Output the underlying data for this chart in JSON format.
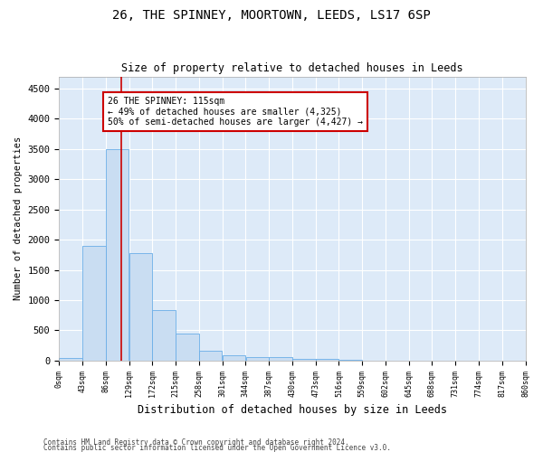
{
  "title1": "26, THE SPINNEY, MOORTOWN, LEEDS, LS17 6SP",
  "title2": "Size of property relative to detached houses in Leeds",
  "xlabel": "Distribution of detached houses by size in Leeds",
  "ylabel": "Number of detached properties",
  "bar_color": "#c9ddf2",
  "bar_edge_color": "#6aaee8",
  "background_color": "#ddeaf8",
  "grid_color": "#ffffff",
  "vline_x": 115,
  "vline_color": "#cc0000",
  "annotation_text": "26 THE SPINNEY: 115sqm\n← 49% of detached houses are smaller (4,325)\n50% of semi-detached houses are larger (4,427) →",
  "annotation_box_color": "#cc0000",
  "footer1": "Contains HM Land Registry data © Crown copyright and database right 2024.",
  "footer2": "Contains public sector information licensed under the Open Government Licence v3.0.",
  "bin_edges": [
    0,
    43,
    86,
    129,
    172,
    215,
    258,
    301,
    344,
    387,
    430,
    473,
    516,
    559,
    602,
    645,
    688,
    731,
    774,
    817,
    860
  ],
  "bar_heights": [
    50,
    1900,
    3500,
    1780,
    840,
    450,
    160,
    95,
    60,
    55,
    30,
    30,
    15,
    5,
    5,
    5,
    5,
    5,
    5,
    5
  ],
  "ylim": [
    0,
    4700
  ],
  "yticks": [
    0,
    500,
    1000,
    1500,
    2000,
    2500,
    3000,
    3500,
    4000,
    4500
  ]
}
